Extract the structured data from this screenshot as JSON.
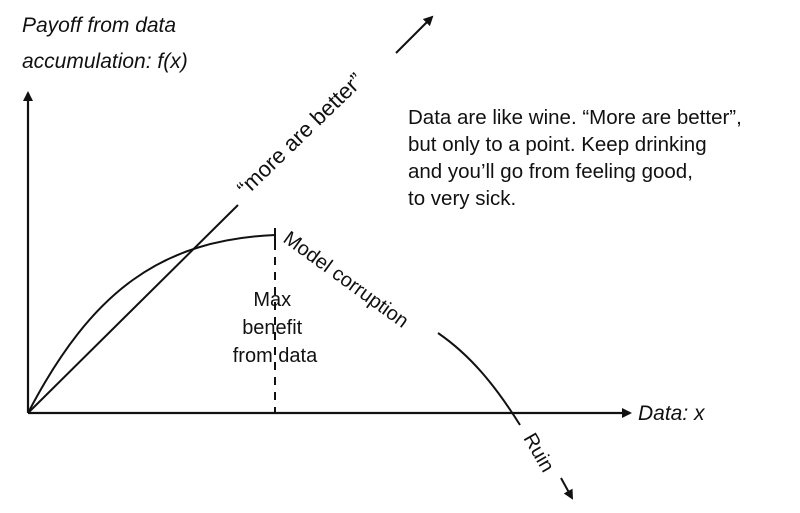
{
  "y_axis_label": [
    "Payoff from data",
    "accumulation: f(x)"
  ],
  "x_axis_label": "Data: x",
  "diagonal_label": "“more are better”",
  "curve_label": "Model corruption",
  "ruin_label": "Ruin",
  "max_label": [
    "Max",
    "benefit",
    "from data"
  ],
  "note": [
    "Data are like wine. “More are better”,",
    "but only to a point. Keep drinking",
    "and you’ll go from feeling good,",
    "to very sick."
  ]
}
